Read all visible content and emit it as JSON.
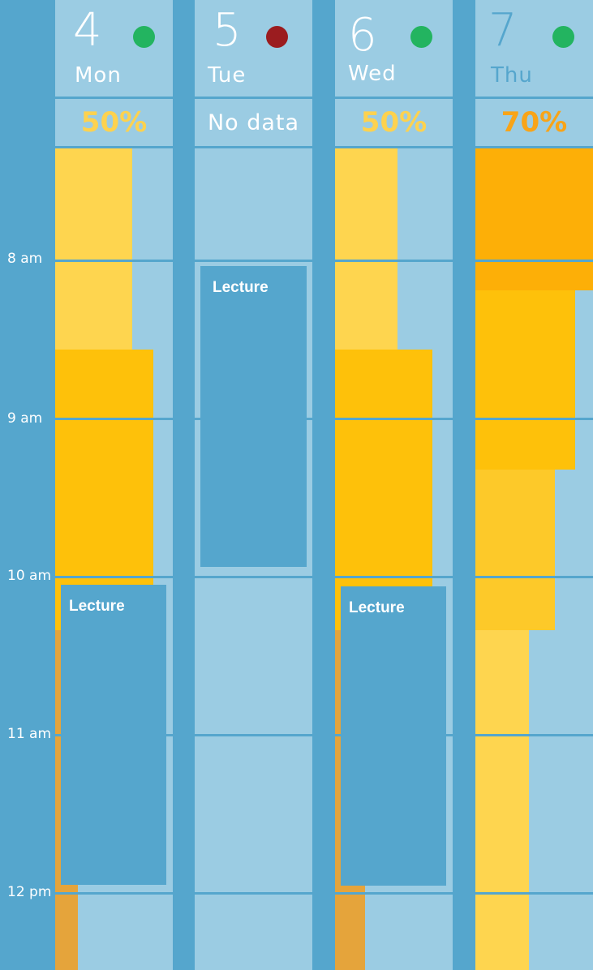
{
  "time_labels": [
    "8 am",
    "9 am",
    "10 am",
    "11 am",
    "12 pm"
  ],
  "days": [
    {
      "number": "4",
      "name": "Mon",
      "status": "green",
      "percent": "50%",
      "percent_color": "#fdd24f",
      "event": {
        "title": "Lecture"
      }
    },
    {
      "number": "5",
      "name": "Tue",
      "status": "red",
      "percent": "No data",
      "percent_color": "#ffffff",
      "event": {
        "title": "Lecture"
      }
    },
    {
      "number": "6",
      "name": "Wed",
      "status": "green",
      "percent": "50%",
      "percent_color": "#fdd24f",
      "event": {
        "title": "Lecture"
      }
    },
    {
      "number": "7",
      "name": "Thu",
      "status": "green",
      "percent": "70%",
      "percent_color": "#f8a418",
      "event": null
    }
  ],
  "colors": {
    "background": "#55a6cd",
    "column": "#9bcce3",
    "status_green": "#23b460",
    "status_red": "#9b1c1f",
    "event": "#55a6cd",
    "load_light": "#fed54f",
    "load_mid": "#fec10a",
    "load_strong": "#fdaf07",
    "load_orange": "#e5a43b",
    "thu_day_number": "#55a6cd"
  }
}
